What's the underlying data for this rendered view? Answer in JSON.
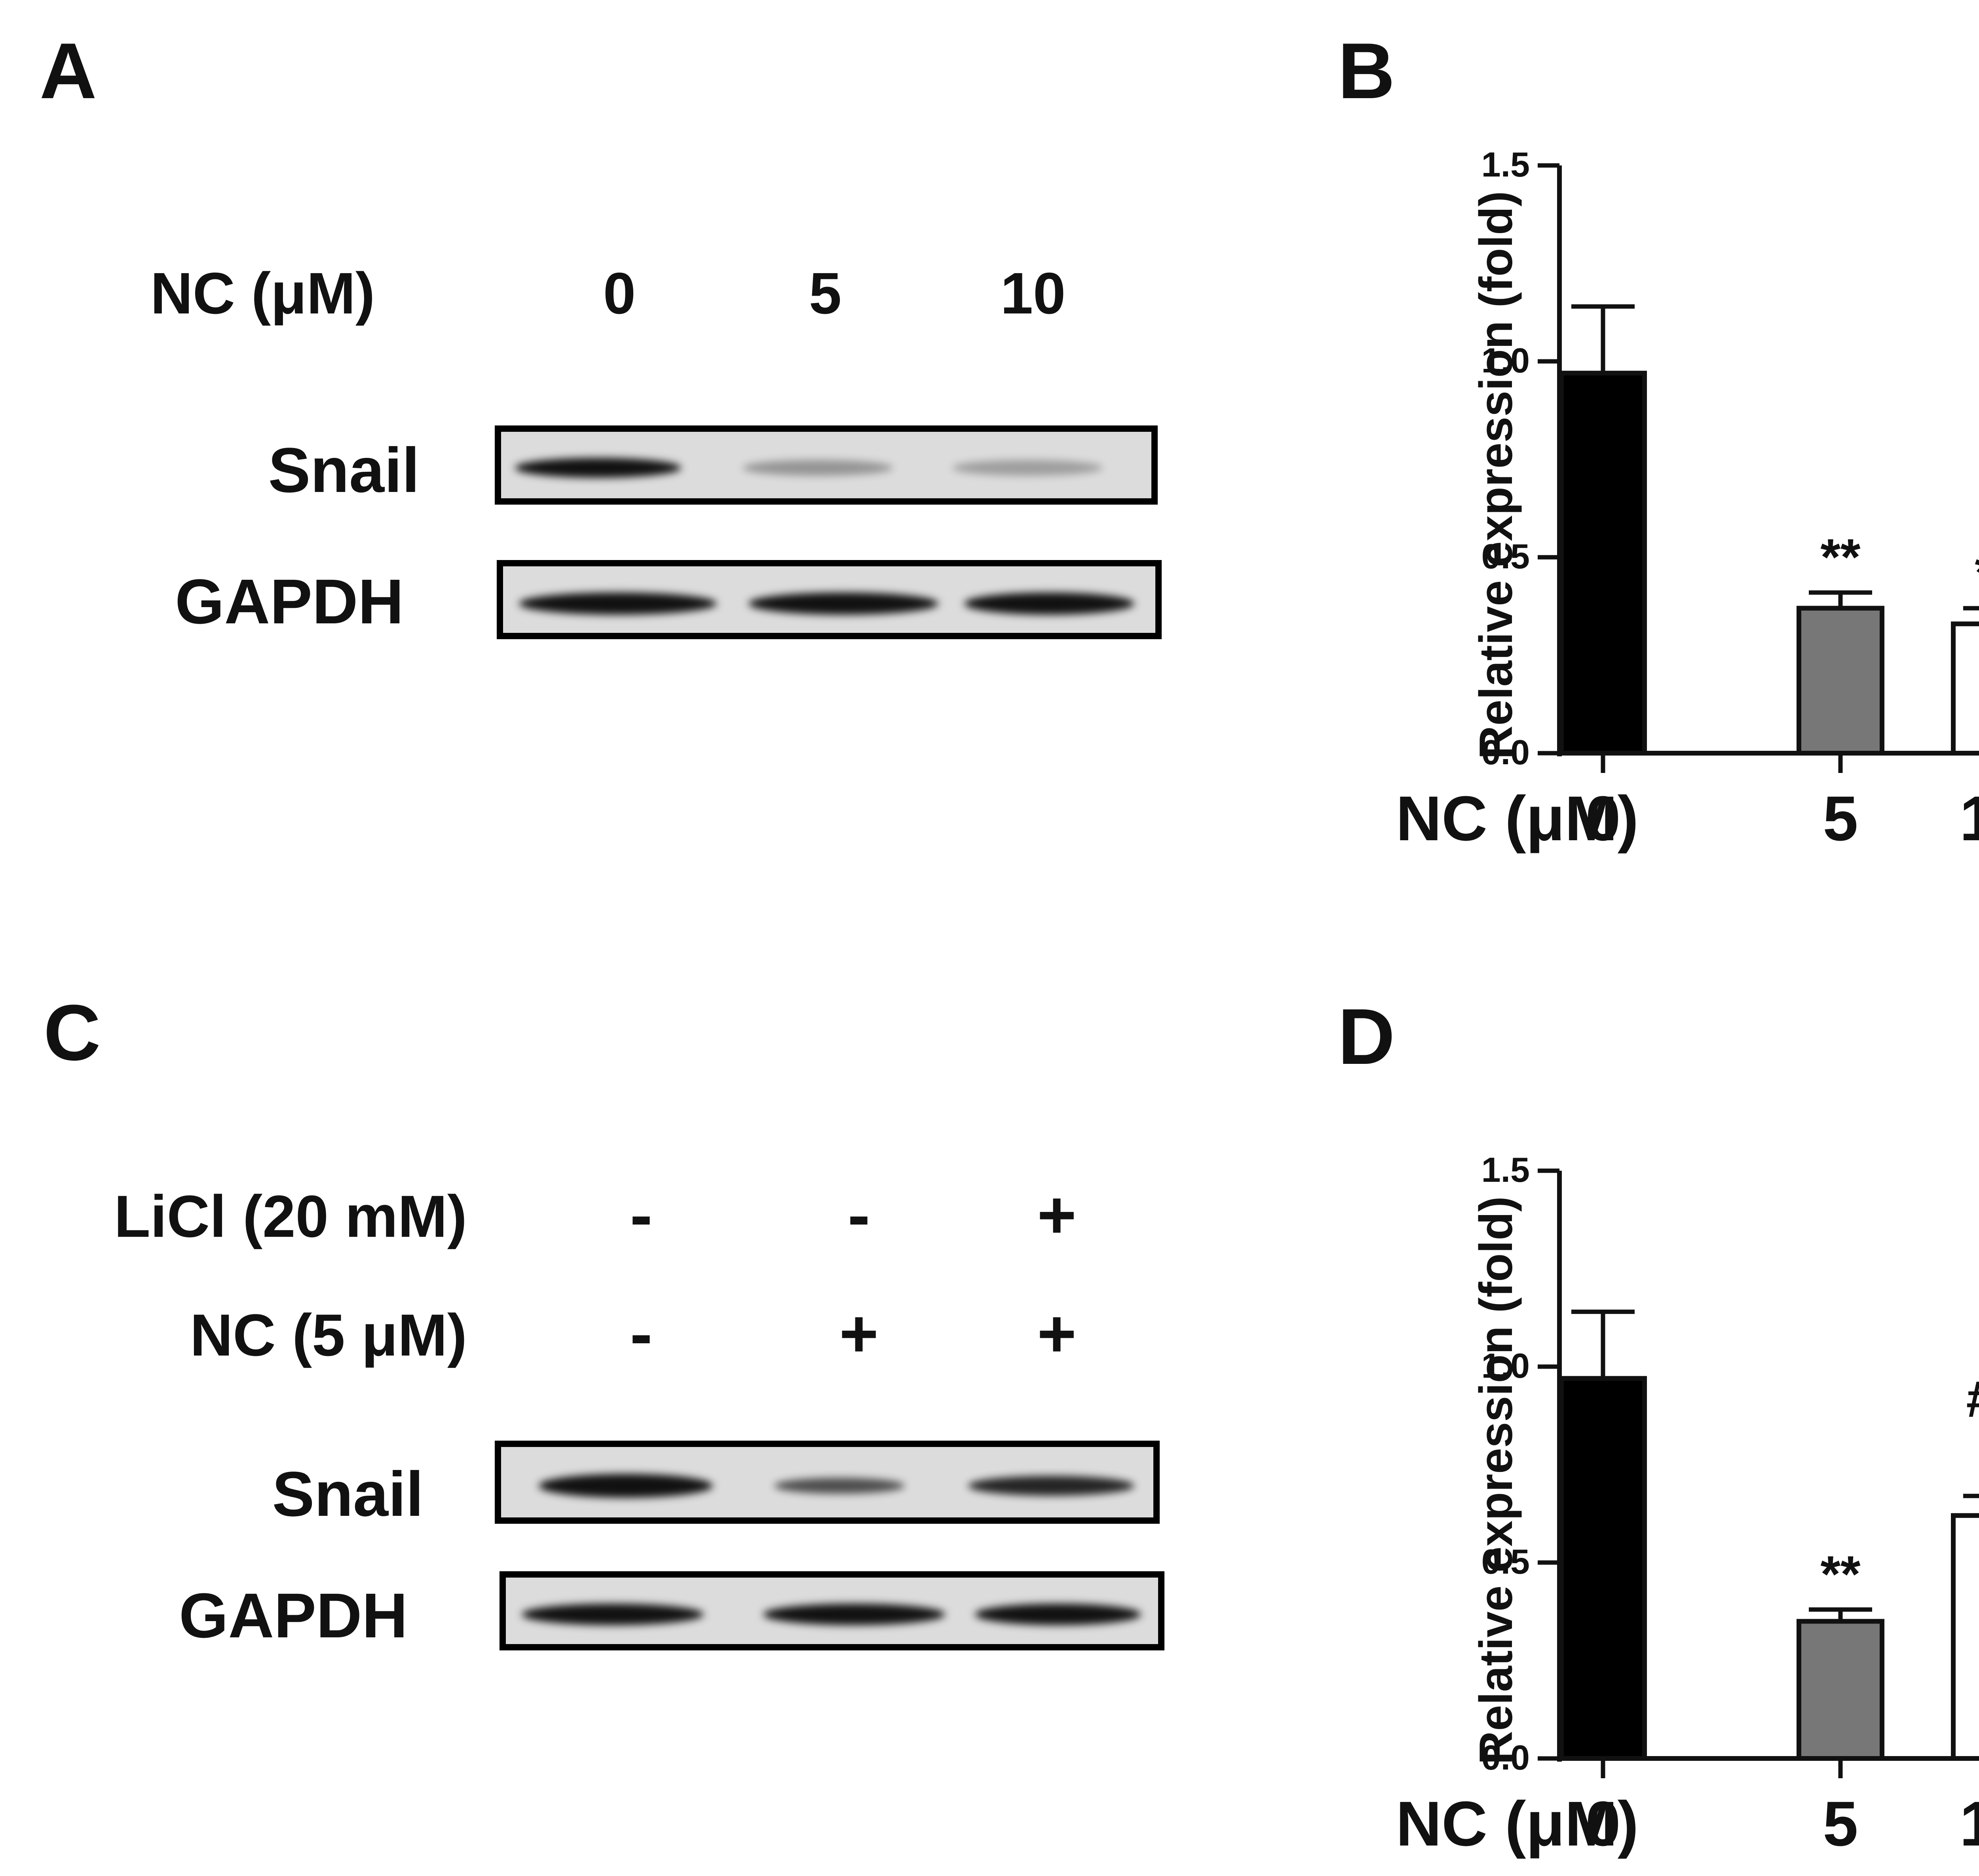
{
  "panels": {
    "A": {
      "letter": "A",
      "header": {
        "label": "NC (μM)",
        "lanes": [
          "0",
          "5",
          "10"
        ]
      },
      "blots": [
        {
          "label": "Snail",
          "band_intensity": [
            1.0,
            0.35,
            0.3
          ]
        },
        {
          "label": "GAPDH",
          "band_intensity": [
            1.0,
            1.0,
            1.0
          ]
        }
      ]
    },
    "B": {
      "letter": "B"
    },
    "C": {
      "letter": "C",
      "conditions": [
        {
          "label": "LiCl (20 mM)",
          "values": [
            "-",
            "-",
            "+"
          ]
        },
        {
          "label": "NC (5 μM)",
          "values": [
            "-",
            "+",
            "+"
          ]
        }
      ],
      "blots": [
        {
          "label": "Snail",
          "band_intensity": [
            1.0,
            0.55,
            0.8
          ]
        },
        {
          "label": "GAPDH",
          "band_intensity": [
            1.0,
            1.0,
            1.0
          ]
        }
      ]
    },
    "D": {
      "letter": "D"
    }
  },
  "chart_data": [
    {
      "panel": "B",
      "type": "bar",
      "categories": [
        "0",
        "5",
        "10"
      ],
      "xlabel": "NC (μM)",
      "ylabel": "Relative expression (fold)",
      "ylim": [
        0.0,
        1.5
      ],
      "yticks": [
        "0.0",
        "0.5",
        "1.0",
        "1.5"
      ],
      "values": [
        0.97,
        0.37,
        0.33
      ],
      "errors": [
        0.17,
        0.04,
        0.04
      ],
      "bar_colors": [
        "#000000",
        "#777777",
        "#ffffff"
      ],
      "annotations": [
        "",
        "**",
        "**"
      ]
    },
    {
      "panel": "D",
      "type": "bar",
      "categories": [
        "0",
        "5",
        "10"
      ],
      "xlabel": "NC (μM)",
      "ylabel": "Relative expression (fold)",
      "ylim": [
        0.0,
        1.5
      ],
      "yticks": [
        "0.0",
        "0.5",
        "1.0",
        "1.5"
      ],
      "values": [
        0.97,
        0.35,
        0.62
      ],
      "errors": [
        0.17,
        0.03,
        0.05
      ],
      "bar_colors": [
        "#000000",
        "#777777",
        "#ffffff"
      ],
      "annotations": [
        "",
        "**",
        "*"
      ],
      "annotations2": [
        "",
        "",
        "##"
      ]
    }
  ]
}
